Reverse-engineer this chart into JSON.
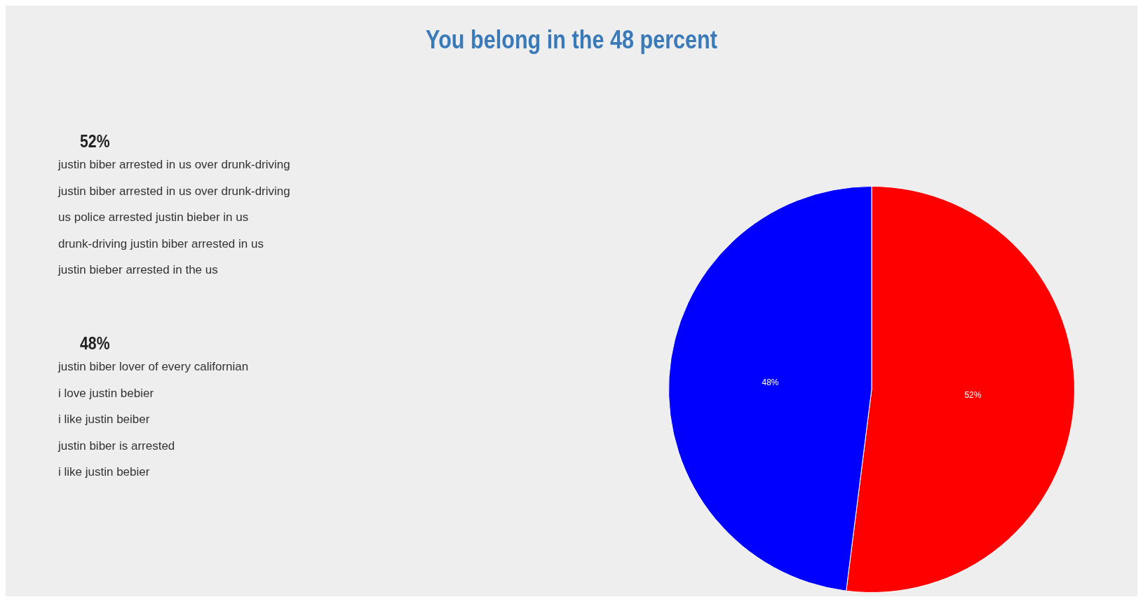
{
  "chart_data": [
    {
      "type": "other",
      "title": "52%",
      "annotations": [
        "justin biber arrested in us over drunk-driving",
        "justin biber arrested in us over drunk-driving",
        "us police arrested justin bieber in us",
        "drunk-driving justin biber arrested in us",
        "justin bieber arrested in the us"
      ]
    },
    {
      "type": "other",
      "title": "48%",
      "annotations": [
        "justin biber lover of every californian",
        "i love justin bebier",
        "i like justin beiber",
        "justin biber is arrested",
        "i like justin bebier"
      ]
    },
    {
      "type": "pie",
      "title": "You belong in the 48 percent",
      "categories": [
        null,
        null
      ],
      "values": [
        52,
        48
      ],
      "colors": [
        "#ff0000",
        "#0000ff"
      ],
      "value_labels": [
        "52%",
        "48%"
      ],
      "legend": false
    }
  ]
}
